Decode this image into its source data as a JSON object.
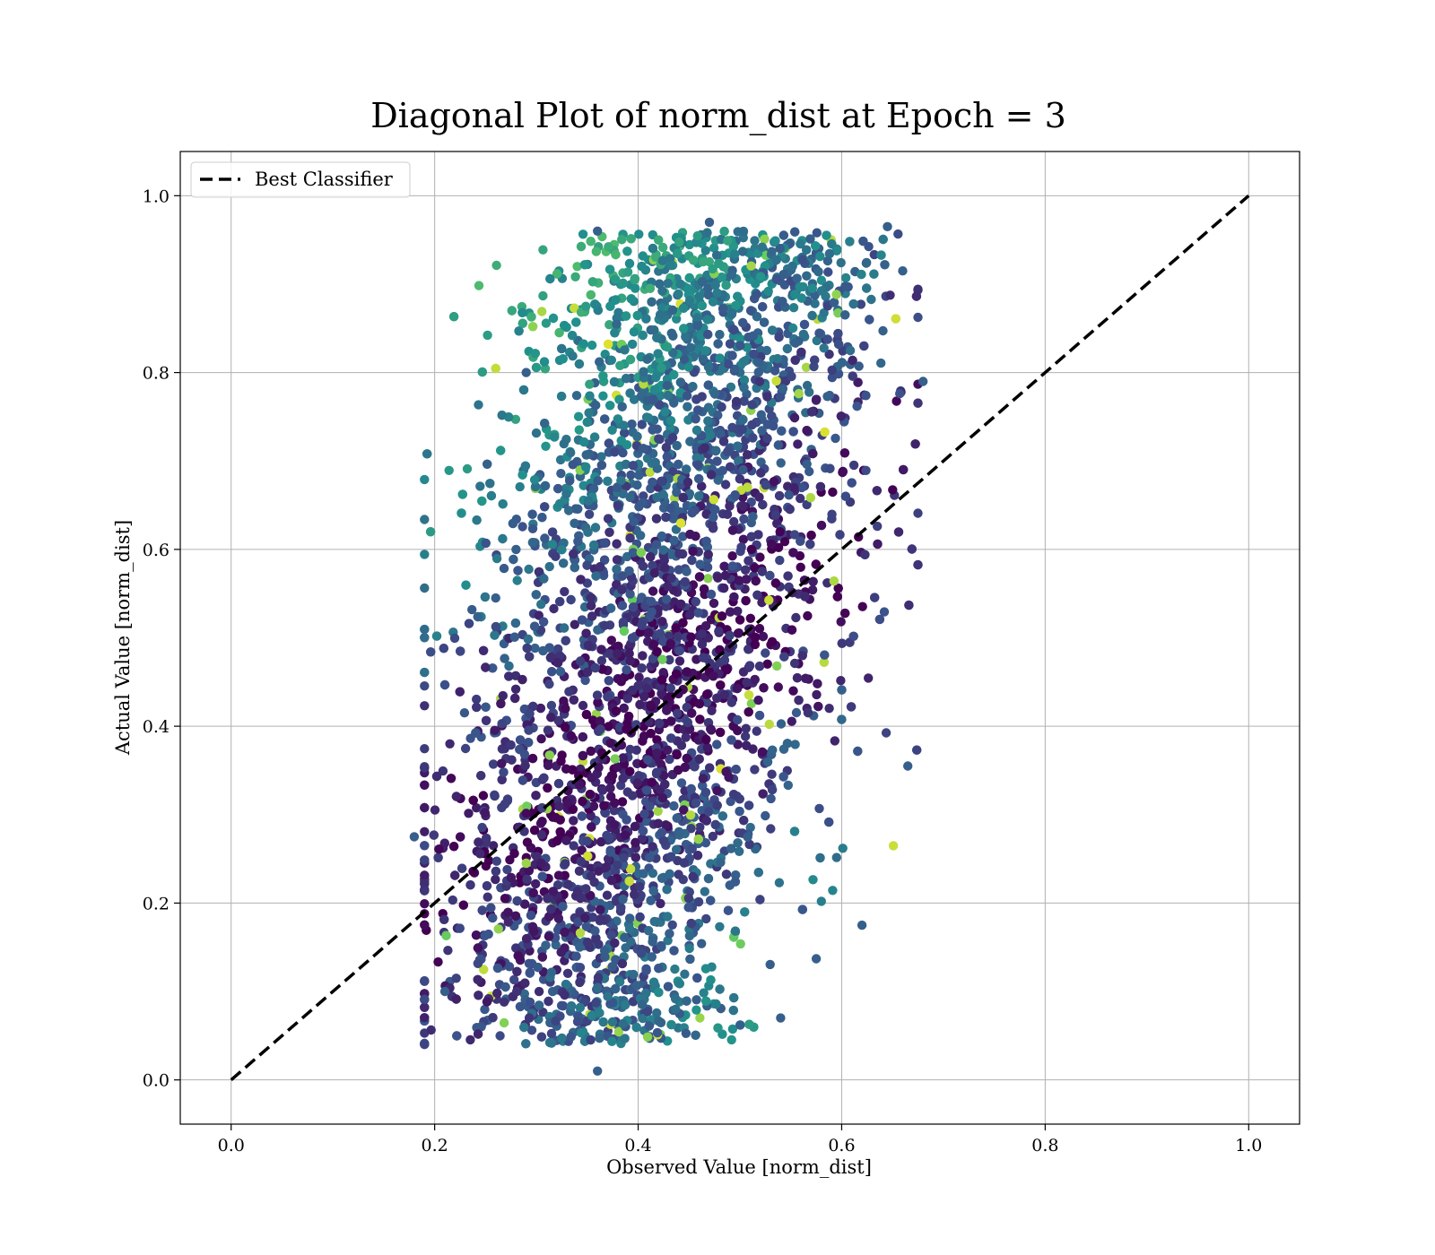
{
  "chart_data": {
    "type": "scatter",
    "title": "Diagonal Plot of norm_dist at Epoch = 3",
    "xlabel": "Observed Value [norm_dist]",
    "ylabel": "Actual Value [norm_dist]",
    "xlim": [
      -0.05,
      1.05
    ],
    "ylim": [
      -0.05,
      1.05
    ],
    "xticks": [
      0.0,
      0.2,
      0.4,
      0.6,
      0.8,
      1.0
    ],
    "yticks": [
      0.0,
      0.2,
      0.4,
      0.6,
      0.8,
      1.0
    ],
    "xtick_labels": [
      "0.0",
      "0.2",
      "0.4",
      "0.6",
      "0.8",
      "1.0"
    ],
    "ytick_labels": [
      "0.0",
      "0.2",
      "0.4",
      "0.6",
      "0.8",
      "1.0"
    ],
    "grid": true,
    "legend": {
      "position": "upper-left",
      "entries": [
        "Best Classifier"
      ]
    },
    "reference_line": {
      "name": "Best Classifier",
      "x": [
        0.0,
        1.0
      ],
      "y": [
        0.0,
        1.0
      ],
      "style": "dashed",
      "color": "#000000"
    },
    "scatter_cloud": {
      "note_points": "dense cloud of points colored with viridis colormap",
      "x_range": [
        0.18,
        0.68
      ],
      "y_range": [
        0.01,
        0.97
      ],
      "colormap": [
        "#440154",
        "#3b528b",
        "#21918c",
        "#5ec962",
        "#fde725"
      ],
      "points": [
        [
          0.36,
          0.96
        ],
        [
          0.47,
          0.97
        ],
        [
          0.29,
          0.8
        ],
        [
          0.18,
          0.275
        ],
        [
          0.36,
          0.01
        ],
        [
          0.645,
          0.965
        ],
        [
          0.68,
          0.79
        ],
        [
          0.62,
          0.175
        ],
        [
          0.54,
          0.07
        ],
        [
          0.21,
          0.1
        ],
        [
          0.26,
          0.545
        ],
        [
          0.28,
          0.6
        ],
        [
          0.575,
          0.137
        ],
        [
          0.665,
          0.355
        ],
        [
          0.66,
          0.915
        ]
      ]
    }
  }
}
